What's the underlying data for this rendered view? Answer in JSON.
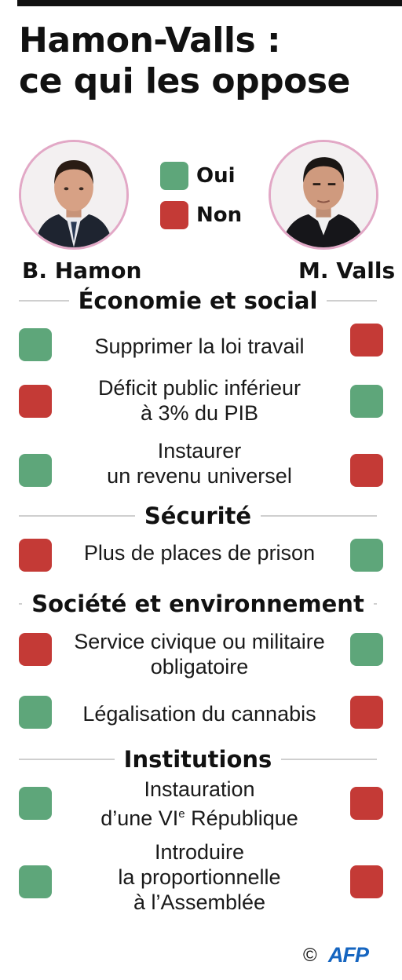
{
  "title": {
    "line1": "Hamon-Valls :",
    "line2": "ce qui les oppose"
  },
  "legend": {
    "yes_label": "Oui",
    "no_label": "Non",
    "yes_color": "#5ea67a",
    "no_color": "#c43a36"
  },
  "candidates": {
    "left": "B. Hamon",
    "right": "M. Valls"
  },
  "sections": [
    {
      "title": "Économie et social",
      "items": [
        {
          "text": "Supprimer la loi travail",
          "hamon": "Oui",
          "valls": "Non"
        },
        {
          "line1": "Déficit public inférieur",
          "line2": "à 3% du PIB",
          "hamon": "Non",
          "valls": "Oui"
        },
        {
          "line1": "Instaurer",
          "line2": "un revenu universel",
          "hamon": "Oui",
          "valls": "Non"
        }
      ]
    },
    {
      "title": "Sécurité",
      "items": [
        {
          "text": "Plus de places de prison",
          "hamon": "Non",
          "valls": "Oui"
        }
      ]
    },
    {
      "title": "Société et environnement",
      "items": [
        {
          "line1": "Service civique ou militaire",
          "line2": "obligatoire",
          "hamon": "Non",
          "valls": "Oui"
        },
        {
          "text": "Légalisation du cannabis",
          "hamon": "Oui",
          "valls": "Non"
        }
      ]
    },
    {
      "title": "Institutions",
      "items": [
        {
          "line1": "Instauration",
          "line2_a": "d’une VI",
          "line2_sup": "e",
          "line2_b": " République",
          "hamon": "Oui",
          "valls": "Non"
        },
        {
          "line1": "Introduire",
          "line2": "la proportionnelle",
          "line3": "à l’Assemblée",
          "hamon": "Oui",
          "valls": "Non"
        }
      ]
    }
  ],
  "credit": {
    "symbol": "©",
    "agency": "AFP"
  }
}
